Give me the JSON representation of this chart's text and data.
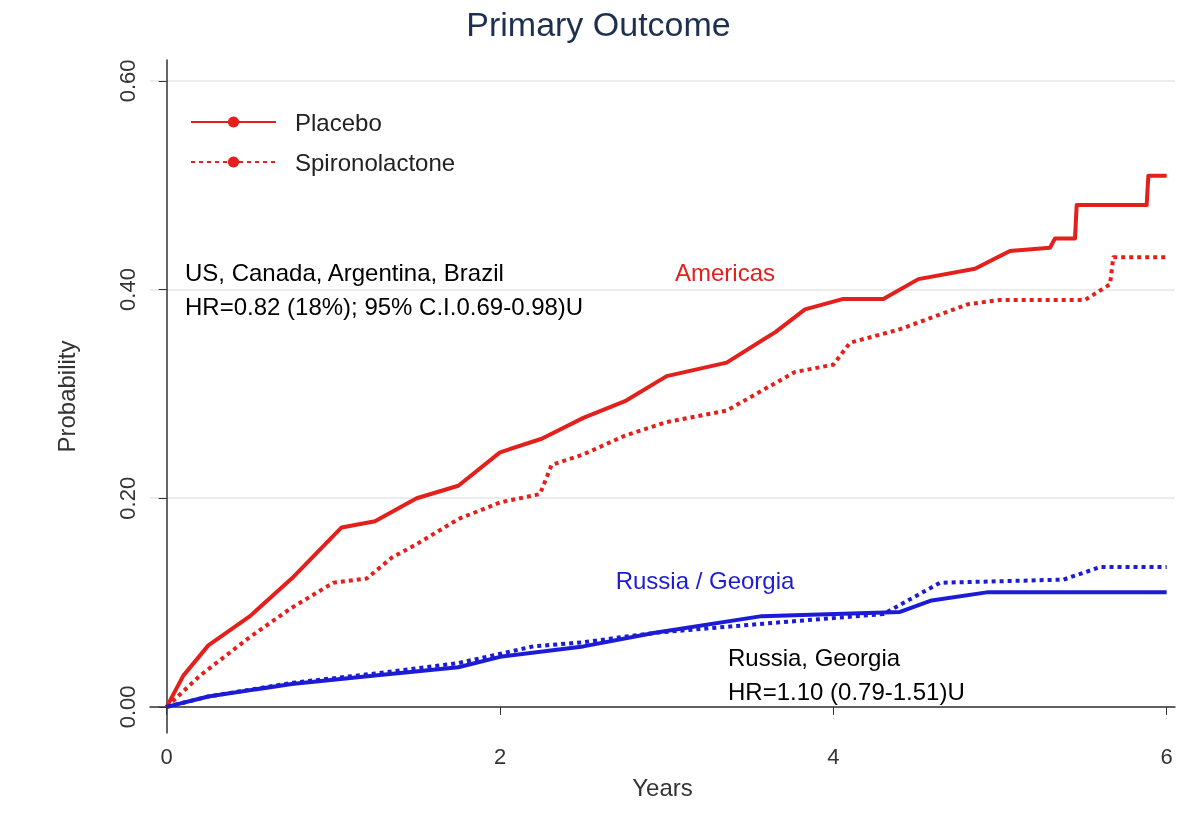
{
  "chart_data": {
    "type": "line",
    "title": "Primary Outcome",
    "xlabel": "Years",
    "ylabel": "Probability",
    "xlim": [
      -0.1,
      6.05
    ],
    "xticks": [
      0,
      2,
      4,
      6
    ],
    "ylim": [
      -0.025,
      0.62
    ],
    "yticks": [
      {
        "value": 0,
        "label": "0.00"
      },
      {
        "value": 0.2,
        "label": "0.20"
      },
      {
        "value": 0.4,
        "label": "0.40"
      },
      {
        "value": 0.6,
        "label": "0.60"
      }
    ],
    "grid": "y",
    "legend": "top left",
    "marker": "none",
    "series": [
      {
        "name": "Placebo",
        "color": "#e3201c",
        "line_style": "solid",
        "x": [
          0,
          0.1,
          0.25,
          0.5,
          0.75,
          1.0,
          1.05,
          1.25,
          1.5,
          1.75,
          2.0,
          2.25,
          2.5,
          2.75,
          3.0,
          3.36,
          3.65,
          3.83,
          4.06,
          4.3,
          4.51,
          4.85,
          5.06,
          5.3,
          5.33,
          5.45,
          5.46,
          5.88,
          5.89,
          6.0
        ],
        "values": [
          0,
          0.03,
          0.059,
          0.087,
          0.123,
          0.164,
          0.172,
          0.178,
          0.2,
          0.212,
          0.244,
          0.257,
          0.277,
          0.293,
          0.317,
          0.33,
          0.359,
          0.381,
          0.391,
          0.391,
          0.41,
          0.42,
          0.437,
          0.44,
          0.449,
          0.449,
          0.481,
          0.481,
          0.509,
          0.509
        ]
      },
      {
        "name": "Spironolactone",
        "color": "#e3201c",
        "line_style": "dotted",
        "x": [
          0,
          0.2,
          0.5,
          0.75,
          1.0,
          1.2,
          1.35,
          1.5,
          1.75,
          2.0,
          2.24,
          2.31,
          2.5,
          2.75,
          3.0,
          3.36,
          3.77,
          4.0,
          4.1,
          4.4,
          4.81,
          5.0,
          5.51,
          5.66,
          5.68,
          6.0
        ],
        "values": [
          0,
          0.03,
          0.067,
          0.095,
          0.119,
          0.123,
          0.143,
          0.156,
          0.18,
          0.196,
          0.204,
          0.232,
          0.242,
          0.26,
          0.273,
          0.284,
          0.321,
          0.328,
          0.349,
          0.362,
          0.386,
          0.39,
          0.39,
          0.405,
          0.431,
          0.431
        ]
      },
      {
        "color": "#1c1cd6",
        "line_style": "solid",
        "x": [
          0,
          0.25,
          0.75,
          1.25,
          1.75,
          2.0,
          2.5,
          2.93,
          3.57,
          4.4,
          4.59,
          4.93,
          6.0
        ],
        "values": [
          0,
          0.01,
          0.022,
          0.03,
          0.038,
          0.048,
          0.058,
          0.071,
          0.087,
          0.091,
          0.102,
          0.11,
          0.11
        ]
      },
      {
        "color": "#1c1cd6",
        "line_style": "dotted",
        "x": [
          0,
          0.25,
          0.75,
          1.25,
          1.75,
          2.2,
          2.5,
          2.93,
          3.6,
          4.3,
          4.64,
          5.38,
          5.6,
          6.0
        ],
        "values": [
          0,
          0.01,
          0.023,
          0.032,
          0.042,
          0.058,
          0.062,
          0.071,
          0.08,
          0.089,
          0.119,
          0.122,
          0.134,
          0.134
        ]
      }
    ],
    "annotations": [
      "Americas",
      "Russia / Georgia",
      "US, Canada, Argentina, Brazil\nHR=0.82 (18%); 95% C.I.0.69-0.98)U",
      "Russia, Georgia\nHR=1.10 (0.79-1.51)U"
    ]
  }
}
